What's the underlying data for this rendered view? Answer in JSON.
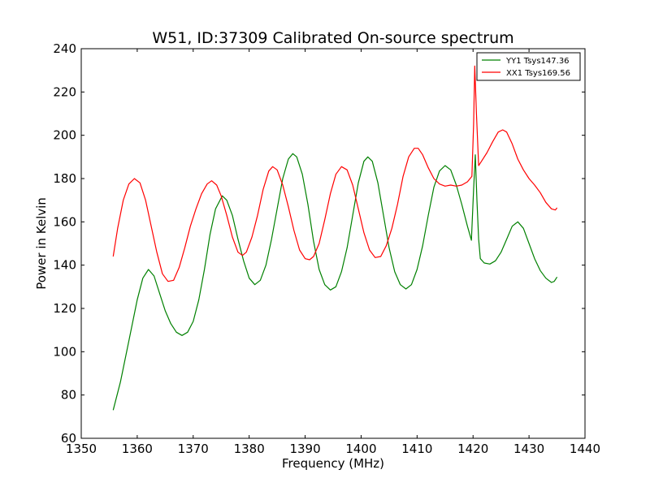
{
  "chart_data": {
    "type": "line",
    "title": "W51, ID:37309 Calibrated On-source spectrum",
    "xlabel": "Frequency (MHz)",
    "ylabel": "Power in Kelvin",
    "xlim": [
      1350,
      1440
    ],
    "ylim": [
      60,
      240
    ],
    "xticks": [
      1350,
      1360,
      1370,
      1380,
      1390,
      1400,
      1410,
      1420,
      1430,
      1440
    ],
    "yticks": [
      60,
      80,
      100,
      120,
      140,
      160,
      180,
      200,
      220,
      240
    ],
    "grid": false,
    "legend_position": "top-right",
    "series": [
      {
        "name": "YY1 Tsys147.36",
        "color": "#008000",
        "points": [
          [
            1355.7,
            73
          ],
          [
            1357.0,
            86
          ],
          [
            1358.5,
            105
          ],
          [
            1360.0,
            124
          ],
          [
            1361.0,
            134
          ],
          [
            1362.0,
            138
          ],
          [
            1363.0,
            135
          ],
          [
            1364.0,
            127
          ],
          [
            1365.0,
            119
          ],
          [
            1366.0,
            113
          ],
          [
            1367.0,
            109
          ],
          [
            1368.0,
            107.5
          ],
          [
            1369.0,
            109
          ],
          [
            1370.0,
            114
          ],
          [
            1371.0,
            124
          ],
          [
            1372.0,
            138
          ],
          [
            1373.0,
            154
          ],
          [
            1374.0,
            166
          ],
          [
            1375.2,
            172
          ],
          [
            1376.0,
            170
          ],
          [
            1377.0,
            163
          ],
          [
            1378.0,
            152
          ],
          [
            1379.0,
            142
          ],
          [
            1380.0,
            134
          ],
          [
            1381.0,
            131
          ],
          [
            1382.0,
            133
          ],
          [
            1383.0,
            140
          ],
          [
            1384.0,
            152
          ],
          [
            1385.0,
            166
          ],
          [
            1386.0,
            180
          ],
          [
            1387.0,
            189
          ],
          [
            1387.8,
            191.5
          ],
          [
            1388.5,
            190
          ],
          [
            1389.5,
            182
          ],
          [
            1390.5,
            168
          ],
          [
            1391.5,
            151
          ],
          [
            1392.5,
            138
          ],
          [
            1393.5,
            131
          ],
          [
            1394.5,
            128.5
          ],
          [
            1395.5,
            130
          ],
          [
            1396.5,
            137
          ],
          [
            1397.5,
            148
          ],
          [
            1398.5,
            163
          ],
          [
            1399.5,
            178
          ],
          [
            1400.5,
            188
          ],
          [
            1401.2,
            190
          ],
          [
            1402.0,
            188
          ],
          [
            1403.0,
            178
          ],
          [
            1404.0,
            163
          ],
          [
            1405.0,
            148
          ],
          [
            1406.0,
            137
          ],
          [
            1407.0,
            131
          ],
          [
            1408.0,
            129
          ],
          [
            1409.0,
            131
          ],
          [
            1410.0,
            138
          ],
          [
            1411.0,
            149
          ],
          [
            1412.0,
            163
          ],
          [
            1413.0,
            176
          ],
          [
            1414.0,
            183.5
          ],
          [
            1415.0,
            186
          ],
          [
            1416.0,
            184
          ],
          [
            1417.0,
            177
          ],
          [
            1418.0,
            168
          ],
          [
            1419.0,
            158
          ],
          [
            1419.7,
            151.5
          ],
          [
            1420.1,
            175
          ],
          [
            1420.4,
            191
          ],
          [
            1420.7,
            170
          ],
          [
            1421.0,
            152
          ],
          [
            1421.3,
            143
          ],
          [
            1422.0,
            141
          ],
          [
            1423.0,
            140.5
          ],
          [
            1424.0,
            142
          ],
          [
            1425.0,
            146
          ],
          [
            1426.0,
            152
          ],
          [
            1427.0,
            158
          ],
          [
            1428.0,
            160
          ],
          [
            1429.0,
            157
          ],
          [
            1430.0,
            150
          ],
          [
            1431.0,
            143
          ],
          [
            1432.0,
            137.5
          ],
          [
            1433.0,
            134
          ],
          [
            1434.0,
            132
          ],
          [
            1434.5,
            132.5
          ],
          [
            1435.0,
            134.5
          ]
        ]
      },
      {
        "name": "XX1 Tsys169.56",
        "color": "#ff0000",
        "points": [
          [
            1355.7,
            144
          ],
          [
            1356.5,
            157
          ],
          [
            1357.5,
            170
          ],
          [
            1358.5,
            177.5
          ],
          [
            1359.5,
            180
          ],
          [
            1360.5,
            178
          ],
          [
            1361.5,
            170
          ],
          [
            1362.5,
            158
          ],
          [
            1363.5,
            146
          ],
          [
            1364.5,
            136
          ],
          [
            1365.5,
            132.5
          ],
          [
            1366.5,
            133
          ],
          [
            1367.5,
            139
          ],
          [
            1368.5,
            148
          ],
          [
            1369.5,
            158
          ],
          [
            1370.5,
            166
          ],
          [
            1371.5,
            173
          ],
          [
            1372.5,
            177.5
          ],
          [
            1373.3,
            179
          ],
          [
            1374.2,
            177
          ],
          [
            1375.0,
            172
          ],
          [
            1376.0,
            163
          ],
          [
            1377.0,
            153
          ],
          [
            1378.0,
            146
          ],
          [
            1378.8,
            144.5
          ],
          [
            1379.5,
            146
          ],
          [
            1380.5,
            153
          ],
          [
            1381.5,
            163
          ],
          [
            1382.5,
            175
          ],
          [
            1383.5,
            183.5
          ],
          [
            1384.2,
            185.5
          ],
          [
            1385.0,
            184
          ],
          [
            1386.0,
            177
          ],
          [
            1387.0,
            167
          ],
          [
            1388.0,
            156
          ],
          [
            1389.0,
            147
          ],
          [
            1390.0,
            143
          ],
          [
            1390.8,
            142.5
          ],
          [
            1391.5,
            144
          ],
          [
            1392.5,
            150
          ],
          [
            1393.5,
            161
          ],
          [
            1394.5,
            173
          ],
          [
            1395.5,
            182
          ],
          [
            1396.5,
            185.5
          ],
          [
            1397.5,
            184
          ],
          [
            1398.5,
            177
          ],
          [
            1399.5,
            166
          ],
          [
            1400.5,
            155
          ],
          [
            1401.5,
            147
          ],
          [
            1402.5,
            143.5
          ],
          [
            1403.5,
            144
          ],
          [
            1404.5,
            149
          ],
          [
            1405.5,
            157
          ],
          [
            1406.5,
            168
          ],
          [
            1407.5,
            181
          ],
          [
            1408.5,
            190
          ],
          [
            1409.5,
            194
          ],
          [
            1410.2,
            194
          ],
          [
            1411.0,
            191
          ],
          [
            1412.0,
            185
          ],
          [
            1413.0,
            180
          ],
          [
            1414.0,
            177.5
          ],
          [
            1415.0,
            176.5
          ],
          [
            1416.0,
            177
          ],
          [
            1417.0,
            176.5
          ],
          [
            1418.0,
            177
          ],
          [
            1419.0,
            178.5
          ],
          [
            1419.8,
            181
          ],
          [
            1420.1,
            205
          ],
          [
            1420.3,
            232
          ],
          [
            1420.6,
            210
          ],
          [
            1421.0,
            186
          ],
          [
            1421.5,
            188
          ],
          [
            1422.5,
            192
          ],
          [
            1423.5,
            197
          ],
          [
            1424.5,
            201.5
          ],
          [
            1425.3,
            202.5
          ],
          [
            1426.0,
            201.5
          ],
          [
            1427.0,
            196
          ],
          [
            1428.0,
            189
          ],
          [
            1429.0,
            184
          ],
          [
            1430.0,
            180
          ],
          [
            1431.0,
            177
          ],
          [
            1432.0,
            173.5
          ],
          [
            1433.0,
            169
          ],
          [
            1434.0,
            166
          ],
          [
            1434.7,
            165.5
          ],
          [
            1435.0,
            166.5
          ]
        ]
      }
    ]
  }
}
